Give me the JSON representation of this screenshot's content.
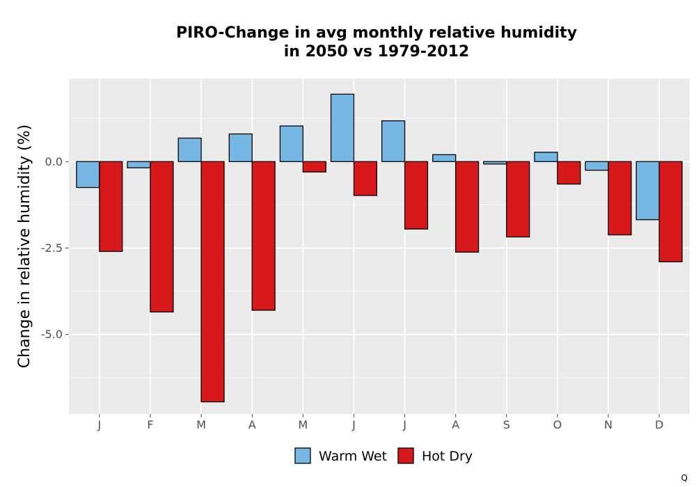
{
  "chart_data": {
    "type": "bar",
    "title_lines": [
      "PIRO-Change in avg monthly relative humidity",
      "in 2050 vs 1979-2012"
    ],
    "xlabel": "",
    "ylabel": "Change in relative humidity (%)",
    "categories": [
      "J",
      "F",
      "M",
      "A",
      "M",
      "J",
      "J",
      "A",
      "S",
      "O",
      "N",
      "D"
    ],
    "series": [
      {
        "name": "Warm Wet",
        "color": "#77b7e3",
        "values": [
          -0.75,
          -0.18,
          0.68,
          0.8,
          1.03,
          1.95,
          1.18,
          0.2,
          -0.07,
          0.27,
          -0.25,
          -1.68
        ]
      },
      {
        "name": "Hot Dry",
        "color": "#d7191c",
        "values": [
          -2.6,
          -4.35,
          -6.95,
          -4.3,
          -0.3,
          -0.98,
          -1.95,
          -2.62,
          -2.18,
          -0.65,
          -2.12,
          -2.9
        ]
      }
    ],
    "yticks": [
      -5.0,
      -2.5,
      0.0
    ],
    "ytick_labels": [
      "-5.0",
      "-2.5",
      "0.0"
    ],
    "ylim": [
      -7.3,
      2.4
    ],
    "grid": true,
    "legend_position": "bottom",
    "footnote": "Q"
  }
}
